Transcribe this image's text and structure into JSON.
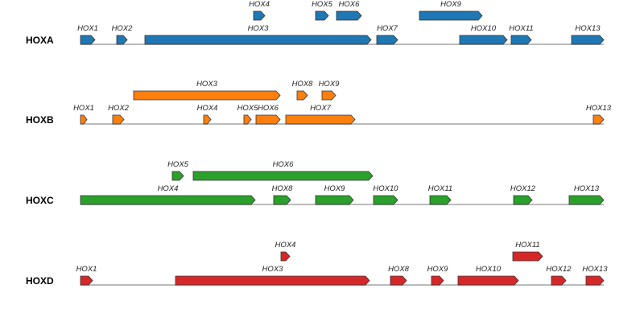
{
  "clusters": [
    {
      "name": "HOXA",
      "color": "#1f77b4",
      "genes": [
        {
          "label": "HOX1",
          "track": "lower"
        },
        {
          "label": "HOX2",
          "track": "lower"
        },
        {
          "label": "HOX3",
          "track": "lower"
        },
        {
          "label": "HOX4",
          "track": "upper"
        },
        {
          "label": "HOX5",
          "track": "upper"
        },
        {
          "label": "HOX6",
          "track": "upper"
        },
        {
          "label": "HOX7",
          "track": "lower"
        },
        {
          "label": "HOX9",
          "track": "upper"
        },
        {
          "label": "HOX10",
          "track": "lower"
        },
        {
          "label": "HOX11",
          "track": "lower"
        },
        {
          "label": "HOX13",
          "track": "lower"
        }
      ]
    },
    {
      "name": "HOXB",
      "color": "#ff7f0e",
      "genes": [
        {
          "label": "HOX1",
          "track": "lower"
        },
        {
          "label": "HOX2",
          "track": "lower"
        },
        {
          "label": "HOX3",
          "track": "upper"
        },
        {
          "label": "HOX4",
          "track": "lower"
        },
        {
          "label": "HOX5",
          "track": "lower"
        },
        {
          "label": "HOX6",
          "track": "lower"
        },
        {
          "label": "HOX7",
          "track": "lower"
        },
        {
          "label": "HOX8",
          "track": "upper"
        },
        {
          "label": "HOX9",
          "track": "upper"
        },
        {
          "label": "HOX13",
          "track": "lower"
        }
      ]
    },
    {
      "name": "HOXC",
      "color": "#2ca02c",
      "genes": [
        {
          "label": "HOX4",
          "track": "lower"
        },
        {
          "label": "HOX5",
          "track": "upper"
        },
        {
          "label": "HOX6",
          "track": "upper"
        },
        {
          "label": "HOX8",
          "track": "lower"
        },
        {
          "label": "HOX9",
          "track": "lower"
        },
        {
          "label": "HOX10",
          "track": "lower"
        },
        {
          "label": "HOX11",
          "track": "lower"
        },
        {
          "label": "HOX12",
          "track": "lower"
        },
        {
          "label": "HOX13",
          "track": "lower"
        }
      ]
    },
    {
      "name": "HOXD",
      "color": "#d62728",
      "genes": [
        {
          "label": "HOX1",
          "track": "lower"
        },
        {
          "label": "HOX3",
          "track": "lower"
        },
        {
          "label": "HOX4",
          "track": "upper"
        },
        {
          "label": "HOX8",
          "track": "lower"
        },
        {
          "label": "HOX9",
          "track": "lower"
        },
        {
          "label": "HOX10",
          "track": "lower"
        },
        {
          "label": "HOX11",
          "track": "upper"
        },
        {
          "label": "HOX12",
          "track": "lower"
        },
        {
          "label": "HOX13",
          "track": "lower"
        }
      ]
    }
  ]
}
